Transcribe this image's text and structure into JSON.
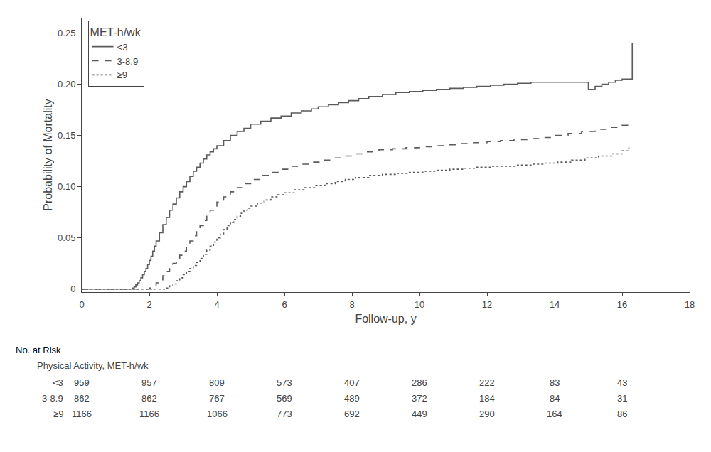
{
  "chart_data": {
    "type": "line",
    "xlabel": "Follow-up, y",
    "ylabel": "Probability of Mortality",
    "xlim": [
      0,
      18
    ],
    "ylim": [
      -0.003,
      0.265
    ],
    "xticks": [
      0,
      2,
      4,
      6,
      8,
      10,
      12,
      14,
      16,
      18
    ],
    "yticks": [
      0,
      0.05,
      {
        "value": 0.1,
        "label": "0.10"
      },
      0.15,
      {
        "value": 0.2,
        "label": "0.20"
      },
      0.25
    ],
    "grid": false,
    "legend": "upper left",
    "legend_title": "MET-h/wk",
    "series": [
      {
        "name": "<3",
        "color": "#5a5a5a",
        "line_style": "solid",
        "x": [
          0.0,
          1.49,
          1.5,
          1.55,
          1.6,
          1.65,
          1.7,
          1.75,
          1.8,
          1.85,
          1.9,
          1.95,
          2.0,
          2.05,
          2.1,
          2.15,
          2.2,
          2.3,
          2.4,
          2.5,
          2.6,
          2.7,
          2.8,
          2.9,
          3.0,
          3.1,
          3.2,
          3.3,
          3.4,
          3.5,
          3.6,
          3.7,
          3.8,
          3.9,
          4.0,
          4.2,
          4.4,
          4.6,
          4.8,
          5.0,
          5.3,
          5.6,
          5.9,
          6.2,
          6.5,
          6.8,
          7.0,
          7.3,
          7.6,
          7.9,
          8.2,
          8.5,
          8.9,
          9.3,
          9.7,
          10.1,
          10.5,
          10.9,
          11.3,
          11.7,
          12.1,
          12.5,
          12.9,
          13.3,
          13.7,
          14.0,
          14.3,
          14.6,
          14.9,
          15.0,
          15.2,
          15.4,
          15.6,
          15.8,
          16.0,
          16.3
        ],
        "values": [
          0.0,
          0.0,
          0.001,
          0.002,
          0.004,
          0.006,
          0.008,
          0.011,
          0.014,
          0.017,
          0.02,
          0.024,
          0.028,
          0.032,
          0.037,
          0.042,
          0.047,
          0.055,
          0.063,
          0.07,
          0.077,
          0.083,
          0.089,
          0.095,
          0.1,
          0.105,
          0.11,
          0.115,
          0.119,
          0.123,
          0.127,
          0.131,
          0.134,
          0.137,
          0.14,
          0.145,
          0.15,
          0.154,
          0.157,
          0.161,
          0.164,
          0.167,
          0.169,
          0.172,
          0.174,
          0.176,
          0.178,
          0.18,
          0.182,
          0.184,
          0.186,
          0.188,
          0.19,
          0.192,
          0.193,
          0.194,
          0.195,
          0.196,
          0.197,
          0.198,
          0.199,
          0.2,
          0.201,
          0.202,
          0.202,
          0.202,
          0.202,
          0.202,
          0.202,
          0.195,
          0.198,
          0.2,
          0.202,
          0.204,
          0.205,
          0.24
        ]
      },
      {
        "name": "3-8.9",
        "color": "#5a5a5a",
        "line_style": "dashed",
        "x": [
          0.0,
          1.99,
          2.0,
          2.1,
          2.2,
          2.3,
          2.4,
          2.5,
          2.6,
          2.7,
          2.8,
          2.9,
          3.0,
          3.1,
          3.2,
          3.3,
          3.4,
          3.5,
          3.6,
          3.7,
          3.8,
          3.9,
          4.0,
          4.2,
          4.4,
          4.6,
          4.8,
          5.0,
          5.3,
          5.6,
          5.9,
          6.2,
          6.5,
          6.8,
          7.1,
          7.4,
          7.7,
          8.0,
          8.4,
          8.8,
          9.2,
          9.6,
          10.0,
          10.4,
          10.8,
          11.2,
          11.6,
          12.0,
          12.4,
          12.8,
          13.2,
          13.6,
          14.0,
          14.4,
          14.8,
          15.2,
          15.6,
          16.0,
          16.2
        ],
        "values": [
          0.0,
          0.0,
          0.001,
          0.003,
          0.006,
          0.009,
          0.013,
          0.017,
          0.021,
          0.025,
          0.029,
          0.033,
          0.037,
          0.042,
          0.047,
          0.052,
          0.057,
          0.062,
          0.067,
          0.072,
          0.077,
          0.081,
          0.085,
          0.09,
          0.095,
          0.099,
          0.103,
          0.107,
          0.111,
          0.114,
          0.117,
          0.12,
          0.122,
          0.124,
          0.126,
          0.128,
          0.13,
          0.132,
          0.134,
          0.136,
          0.137,
          0.138,
          0.139,
          0.14,
          0.141,
          0.142,
          0.143,
          0.144,
          0.145,
          0.146,
          0.147,
          0.148,
          0.15,
          0.152,
          0.154,
          0.156,
          0.158,
          0.16,
          0.162
        ]
      },
      {
        "name": "≥9",
        "color": "#5a5a5a",
        "line_style": "dotted",
        "x": [
          0.0,
          2.49,
          2.5,
          2.6,
          2.7,
          2.8,
          2.9,
          3.0,
          3.1,
          3.2,
          3.3,
          3.4,
          3.5,
          3.6,
          3.7,
          3.8,
          3.9,
          4.0,
          4.1,
          4.2,
          4.3,
          4.4,
          4.5,
          4.6,
          4.7,
          4.8,
          4.9,
          5.0,
          5.2,
          5.4,
          5.6,
          5.8,
          6.0,
          6.3,
          6.6,
          6.9,
          7.2,
          7.5,
          7.8,
          8.1,
          8.5,
          8.9,
          9.3,
          9.7,
          10.1,
          10.5,
          10.9,
          11.3,
          11.7,
          12.1,
          12.5,
          12.9,
          13.3,
          13.7,
          14.1,
          14.5,
          14.9,
          15.3,
          15.7,
          16.0,
          16.2
        ],
        "values": [
          0.0,
          0.0,
          0.001,
          0.003,
          0.005,
          0.008,
          0.011,
          0.014,
          0.017,
          0.02,
          0.023,
          0.026,
          0.03,
          0.034,
          0.038,
          0.042,
          0.046,
          0.05,
          0.054,
          0.058,
          0.062,
          0.065,
          0.068,
          0.071,
          0.074,
          0.077,
          0.079,
          0.081,
          0.084,
          0.087,
          0.09,
          0.092,
          0.094,
          0.097,
          0.099,
          0.101,
          0.103,
          0.105,
          0.107,
          0.109,
          0.111,
          0.112,
          0.113,
          0.114,
          0.115,
          0.116,
          0.117,
          0.118,
          0.119,
          0.12,
          0.12,
          0.121,
          0.122,
          0.123,
          0.124,
          0.126,
          0.128,
          0.13,
          0.132,
          0.135,
          0.14
        ]
      }
    ],
    "risk_table": {
      "title": "No. at Risk",
      "subtitle": "Physical Activity, MET-h/wk",
      "x": [
        0,
        2,
        4,
        6,
        8,
        10,
        12,
        14,
        16
      ],
      "rows": [
        {
          "name": "<3",
          "values": [
            959,
            957,
            809,
            573,
            407,
            286,
            222,
            83,
            43
          ]
        },
        {
          "name": "3-8.9",
          "values": [
            862,
            862,
            767,
            569,
            489,
            372,
            184,
            84,
            31
          ]
        },
        {
          "name": "≥9",
          "values": [
            1166,
            1166,
            1066,
            773,
            692,
            449,
            290,
            164,
            86
          ]
        }
      ]
    }
  }
}
